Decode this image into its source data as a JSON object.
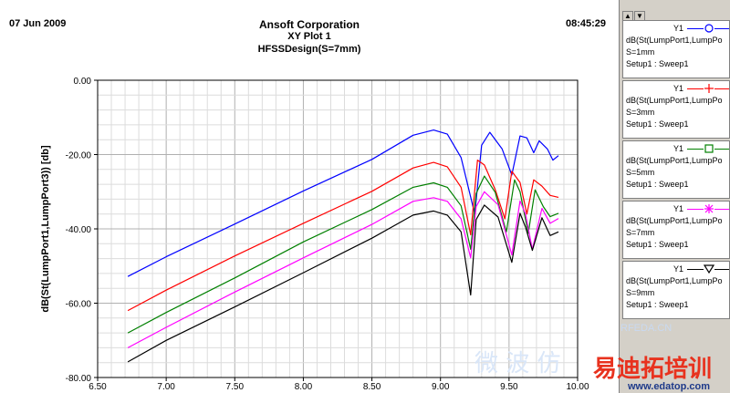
{
  "header": {
    "date": "07 Jun 2009",
    "time": "08:45:29",
    "company": "Ansoft Corporation",
    "plot_title": "XY Plot 1",
    "design": "HFSSDesign(S=7mm)"
  },
  "chart_data": {
    "type": "line",
    "ylabel": "dB(St(LumpPort1,LumpPort3)) [db]",
    "xlabel": "",
    "xlim": [
      6.5,
      10.0
    ],
    "ylim": [
      -80,
      0
    ],
    "x_ticks": [
      "6.50",
      "7.00",
      "7.50",
      "8.00",
      "8.50",
      "9.00",
      "9.50",
      "10.00"
    ],
    "y_ticks": [
      "0.00",
      "-20.00",
      "-40.00",
      "-60.00",
      "-80.00"
    ],
    "grid": true,
    "legend_position": "right-panel",
    "series": [
      {
        "name": "S=1mm",
        "color": "#0000ff",
        "marker": "circle",
        "x": [
          6.72,
          7.0,
          7.5,
          8.0,
          8.5,
          8.8,
          8.95,
          9.05,
          9.15,
          9.25,
          9.3,
          9.36,
          9.45,
          9.52,
          9.58,
          9.63,
          9.68,
          9.72,
          9.78,
          9.82,
          9.86
        ],
        "y": [
          -52.8,
          -47.5,
          -38.7,
          -29.8,
          -21.3,
          -14.8,
          -13.4,
          -14.5,
          -20.8,
          -36.0,
          -17.5,
          -14.0,
          -18.5,
          -25.5,
          -15.0,
          -15.5,
          -19.5,
          -16.3,
          -18.5,
          -21.5,
          -20.3
        ]
      },
      {
        "name": "S=3mm",
        "color": "#ff0000",
        "marker": "plus",
        "x": [
          6.72,
          7.0,
          7.5,
          8.0,
          8.5,
          8.8,
          8.95,
          9.05,
          9.15,
          9.22,
          9.27,
          9.32,
          9.4,
          9.47,
          9.52,
          9.58,
          9.63,
          9.68,
          9.74,
          9.8,
          9.86
        ],
        "y": [
          -62.0,
          -56.5,
          -47.3,
          -38.5,
          -29.9,
          -23.6,
          -22.1,
          -23.3,
          -28.8,
          -41.6,
          -21.5,
          -22.8,
          -29.5,
          -37.3,
          -24.5,
          -27.5,
          -36.0,
          -26.8,
          -28.5,
          -31.0,
          -31.5
        ]
      },
      {
        "name": "S=5mm",
        "color": "#008000",
        "marker": "square",
        "x": [
          6.72,
          7.0,
          7.5,
          8.0,
          8.5,
          8.8,
          8.95,
          9.05,
          9.15,
          9.22,
          9.26,
          9.32,
          9.4,
          9.48,
          9.54,
          9.58,
          9.64,
          9.69,
          9.75,
          9.8,
          9.86
        ],
        "y": [
          -68.0,
          -62.5,
          -53.2,
          -43.5,
          -34.8,
          -28.8,
          -27.6,
          -28.8,
          -33.8,
          -45.5,
          -30.5,
          -25.8,
          -30.2,
          -40.8,
          -26.8,
          -30.0,
          -41.2,
          -29.5,
          -34.0,
          -36.7,
          -35.8
        ]
      },
      {
        "name": "S=7mm",
        "color": "#ff00ff",
        "marker": "star",
        "x": [
          6.72,
          7.0,
          7.5,
          8.0,
          8.5,
          8.8,
          8.95,
          9.05,
          9.15,
          9.22,
          9.26,
          9.32,
          9.42,
          9.52,
          9.58,
          9.62,
          9.67,
          9.74,
          9.8,
          9.86
        ],
        "y": [
          -72.0,
          -66.5,
          -57.0,
          -47.8,
          -38.8,
          -32.6,
          -31.6,
          -32.6,
          -37.3,
          -47.8,
          -34.0,
          -30.0,
          -33.5,
          -47.0,
          -32.5,
          -36.0,
          -45.5,
          -34.5,
          -38.5,
          -37.2
        ]
      },
      {
        "name": "S=9mm",
        "color": "#000000",
        "marker": "triangle-down",
        "x": [
          6.72,
          7.0,
          7.5,
          8.0,
          8.5,
          8.8,
          8.95,
          9.05,
          9.15,
          9.22,
          9.26,
          9.32,
          9.42,
          9.52,
          9.58,
          9.62,
          9.67,
          9.74,
          9.8,
          9.86
        ],
        "y": [
          -75.8,
          -70.0,
          -61.0,
          -51.8,
          -42.5,
          -36.3,
          -35.2,
          -36.3,
          -40.8,
          -57.8,
          -37.5,
          -33.6,
          -36.8,
          -49.0,
          -35.8,
          -39.5,
          -45.8,
          -37.0,
          -41.8,
          -40.8
        ]
      }
    ]
  },
  "legend": [
    {
      "y_label": "Y1",
      "expr": "dB(St(LumpPort1,LumpPo",
      "param": "S=1mm",
      "setup": "Setup1 : Sweep1",
      "color": "#0000ff",
      "marker": "circle"
    },
    {
      "y_label": "Y1",
      "expr": "dB(St(LumpPort1,LumpPo",
      "param": "S=3mm",
      "setup": "Setup1 : Sweep1",
      "color": "#ff0000",
      "marker": "plus"
    },
    {
      "y_label": "Y1",
      "expr": "dB(St(LumpPort1,LumpPo",
      "param": "S=5mm",
      "setup": "Setup1 : Sweep1",
      "color": "#008000",
      "marker": "square"
    },
    {
      "y_label": "Y1",
      "expr": "dB(St(LumpPort1,LumpPo",
      "param": "S=7mm",
      "setup": "Setup1 : Sweep1",
      "color": "#ff00ff",
      "marker": "star"
    },
    {
      "y_label": "Y1",
      "expr": "dB(St(LumpPort1,LumpPo",
      "param": "S=9mm",
      "setup": "Setup1 : Sweep1",
      "color": "#000000",
      "marker": "triangle-down"
    }
  ],
  "scroll": {
    "up_icon": "triangle-up-icon",
    "down_icon": "triangle-down-icon"
  },
  "watermark": {
    "site": "RFEDA.CN",
    "cn_text_1": "微 波 仿",
    "cn_text_2": "易迪拓培训",
    "url": "www.edatop.com"
  }
}
